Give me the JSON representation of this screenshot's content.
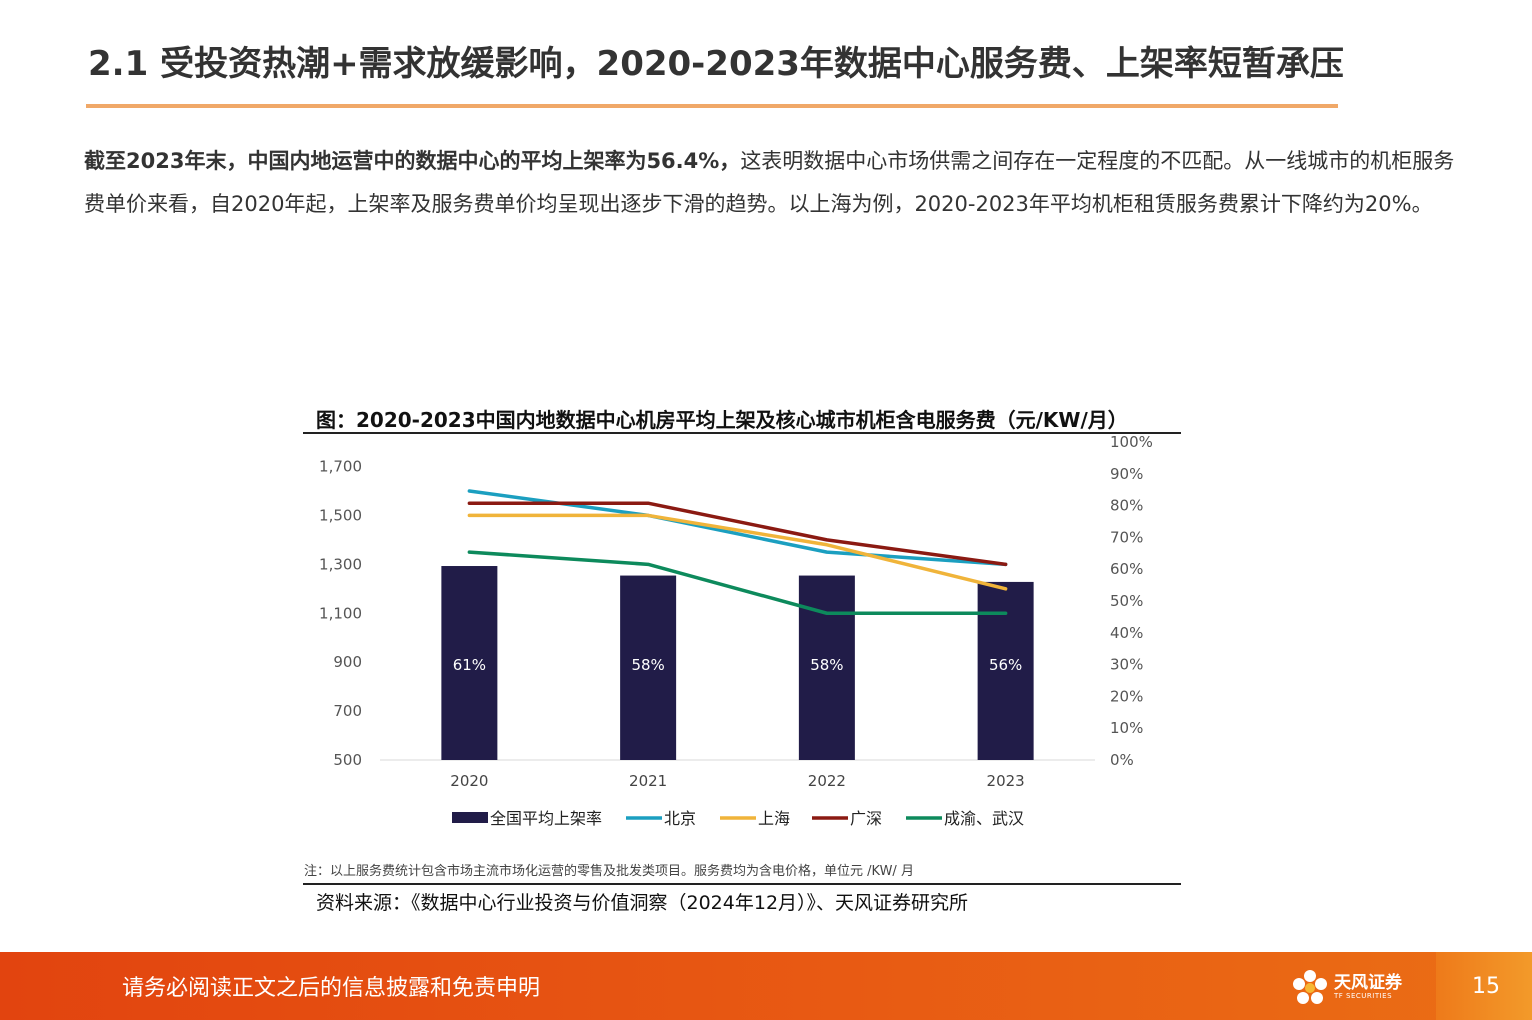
{
  "slide": {
    "title": "2.1 受投资热潮+需求放缓影响，2020-2023年数据中心服务费、上架率短暂承压",
    "body_lead": "截至2023年末，中国内地运营中的数据中心的平均上架率为56.4%，",
    "body_rest": "这表明数据中心市场供需之间存在一定程度的不匹配。从一线城市的机柜服务费单价来看，自2020年起，上架率及服务费单价均呈现出逐步下滑的趋势。以上海为例，2020-2023年平均机柜租赁服务费累计下降约为20%。"
  },
  "figure": {
    "title": "图：2020-2023中国内地数据中心机房平均上架及核心城市机柜含电服务费（元/KW/月）",
    "note": "注：以上服务费统计包含市场主流市场化运营的零售及批发类项目。服务费均为含电价格，单位元 /KW/ 月",
    "source": "资料来源：《数据中心行业投资与价值洞察（2024年12月）》、天风证券研究所"
  },
  "chart_data": {
    "type": "bar",
    "title": "图：2020-2023中国内地数据中心机房平均上架及核心城市机柜含电服务费（元/KW/月）",
    "categories": [
      "2020",
      "2021",
      "2022",
      "2023"
    ],
    "y_left": {
      "range": [
        500,
        1800
      ],
      "ticks": [
        500,
        700,
        900,
        1100,
        1300,
        1500,
        1700
      ],
      "tick_labels": [
        "500",
        "700",
        "900",
        "1,100",
        "1,300",
        "1,500",
        "1,700"
      ]
    },
    "y_right": {
      "range": [
        0,
        100
      ],
      "ticks": [
        0,
        10,
        20,
        30,
        40,
        50,
        60,
        70,
        80,
        90,
        100
      ],
      "tick_labels": [
        "0%",
        "10%",
        "20%",
        "30%",
        "40%",
        "50%",
        "60%",
        "70%",
        "80%",
        "90%",
        "100%"
      ]
    },
    "bar_series": {
      "name": "全国平均上架率",
      "axis": "right",
      "values": [
        61,
        58,
        58,
        56
      ],
      "labels": [
        "61%",
        "58%",
        "58%",
        "56%"
      ],
      "color": "#211c48"
    },
    "line_series": [
      {
        "name": "北京",
        "axis": "left",
        "values": [
          1600,
          1500,
          1350,
          1300
        ],
        "color": "#1b9fc0"
      },
      {
        "name": "上海",
        "axis": "left",
        "values": [
          1500,
          1500,
          1380,
          1200
        ],
        "color": "#f0b43a"
      },
      {
        "name": "广深",
        "axis": "left",
        "values": [
          1550,
          1550,
          1400,
          1300
        ],
        "color": "#8b1a12"
      },
      {
        "name": "成渝、武汉",
        "axis": "left",
        "values": [
          1350,
          1300,
          1100,
          1100
        ],
        "color": "#0d8a5c"
      }
    ],
    "grid": false,
    "legend_position": "bottom"
  },
  "footer": {
    "disclaimer": "请务必阅读正文之后的信息披露和免责申明",
    "logo_name": "天风证券",
    "logo_sub": "TF SECURITIES",
    "page": "15"
  },
  "colors": {
    "title_rule": "#f0a868",
    "footer_bg": "#e2440f",
    "page_box": "#f39a2a"
  }
}
